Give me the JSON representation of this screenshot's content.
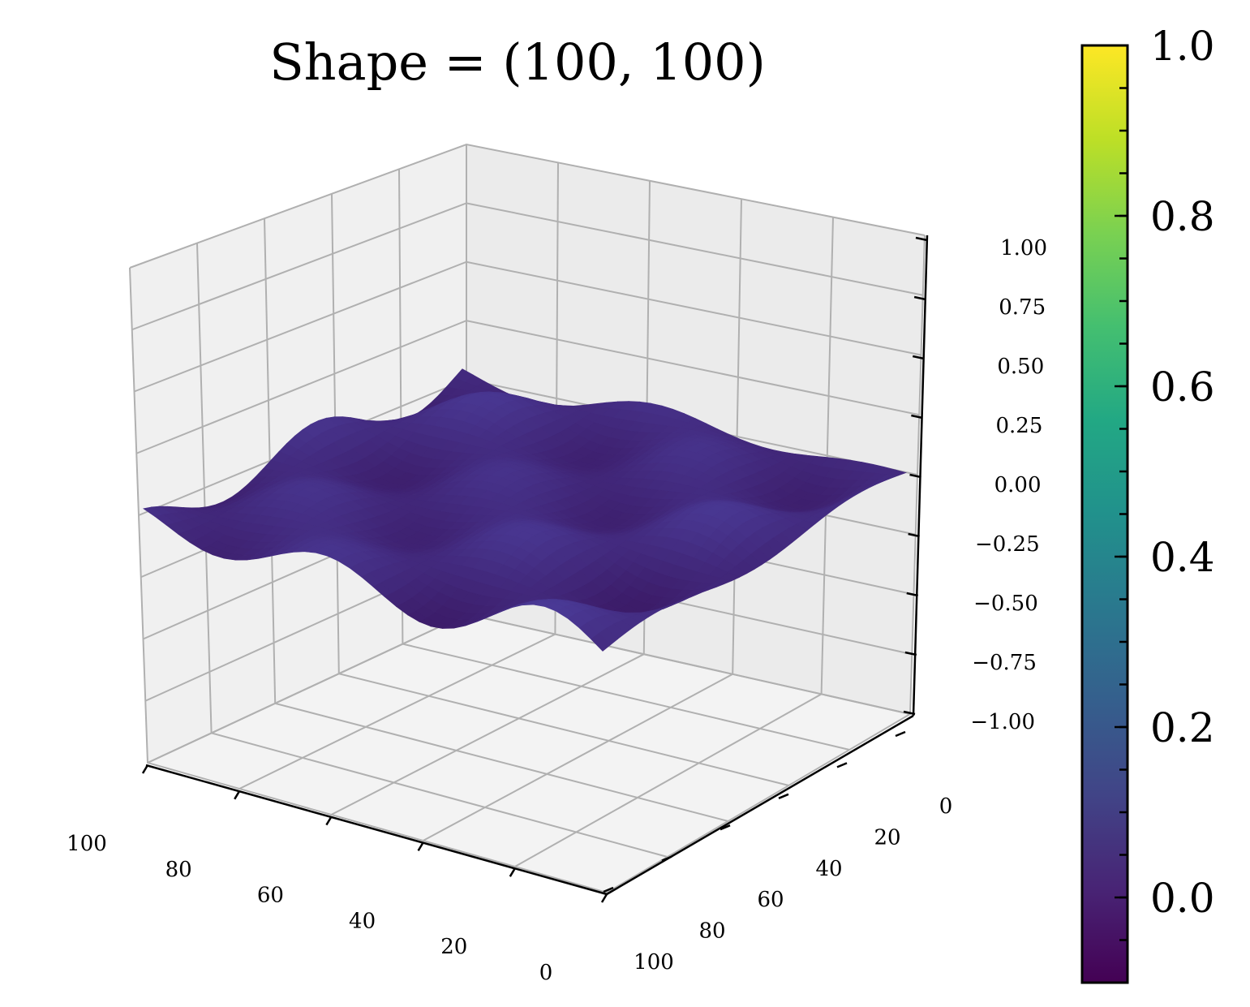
{
  "chart_data": {
    "type": "surface",
    "title": "Shape = (100, 100)",
    "x_axis": {
      "ticks": [
        "0",
        "20",
        "40",
        "60",
        "80",
        "100"
      ],
      "range": [
        0,
        100
      ]
    },
    "y_axis": {
      "ticks": [
        "0",
        "20",
        "40",
        "60",
        "80",
        "100"
      ],
      "range": [
        0,
        100
      ]
    },
    "z_axis": {
      "ticks": [
        "−1.00",
        "−0.75",
        "−0.50",
        "−0.25",
        "0.00",
        "0.25",
        "0.50",
        "0.75",
        "1.00"
      ],
      "range": [
        -1.0,
        1.0
      ]
    },
    "surface": {
      "shape": [
        100,
        100
      ],
      "description_of_values": "undulating surface z ≈ 0.1 · sin(x) · cos(y) waves, values roughly between −0.1 and 0.1",
      "z_min": -0.1,
      "z_max": 0.1
    },
    "colorbar": {
      "colormap": "viridis",
      "range": [
        -0.1,
        1.0
      ],
      "ticks": [
        "0.0",
        "0.2",
        "0.4",
        "0.6",
        "0.8",
        "1.0"
      ],
      "tick_values": [
        0.0,
        0.2,
        0.4,
        0.6,
        0.8,
        1.0
      ]
    },
    "grid": true,
    "colors": {
      "pane_left": "#f0f0f0",
      "pane_back": "#ebebeb",
      "pane_floor": "#f3f3f3",
      "grid": "#b0b0b0",
      "surface_low": "#3b1a66",
      "surface_high": "#4a3a96"
    }
  }
}
